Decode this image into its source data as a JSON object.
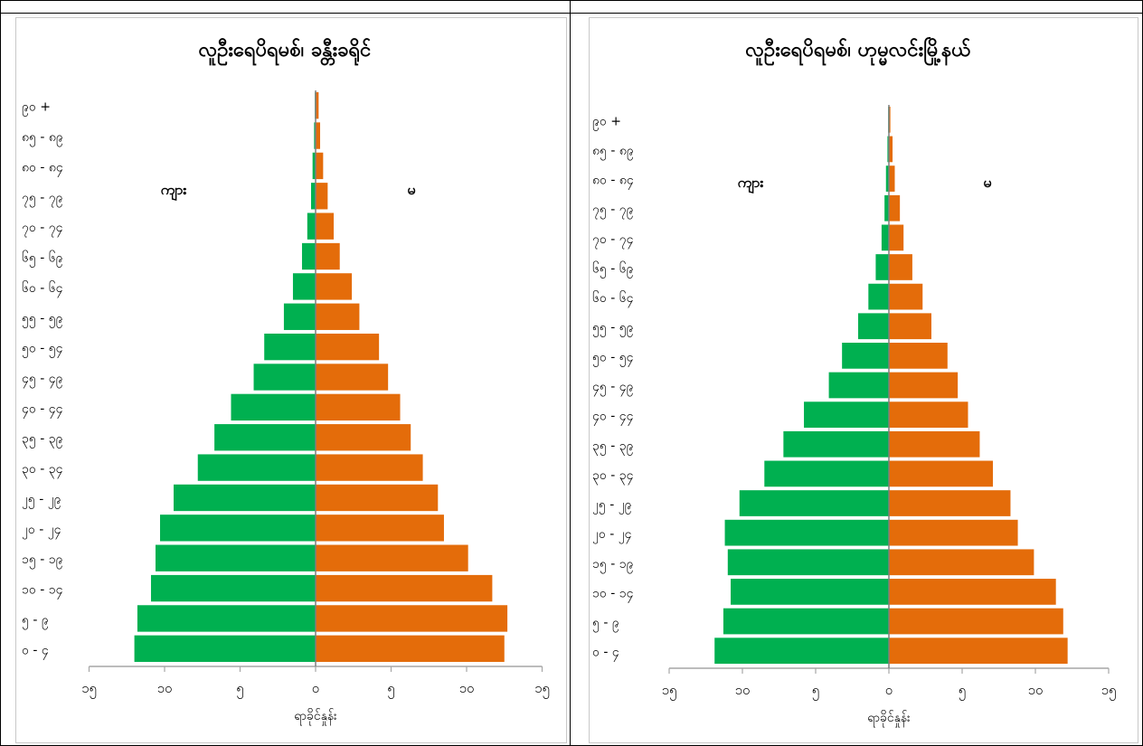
{
  "chart_data": [
    {
      "type": "bar",
      "title": "လူဦးရေပိရမစ်၊ ခန္တီးခရိုင်",
      "xlabel": "ရာခိုင်နှုန်း",
      "ylabel": "",
      "orientation": "horizontal-population-pyramid",
      "categories": [
        "၀ - ၄",
        "၅ - ၉",
        "၁၀ - ၁၄",
        "၁၅ - ၁၉",
        "၂၀ - ၂၄",
        "၂၅ - ၂၉",
        "၃၀ - ၃၄",
        "၃၅ - ၃၉",
        "၄၀ - ၄၄",
        "၄၅ - ၄၉",
        "၅၀ - ၅၄",
        "၅၅ - ၅၉",
        "၆၀ - ၆၄",
        "၆၅ - ၆၉",
        "၇၀ - ၇၄",
        "၇၅ - ၇၉",
        "၈၀ - ၈၄",
        "၈၅ - ၈၉",
        "၉၀ +"
      ],
      "xlim": [
        -15,
        15
      ],
      "xticks": [
        -15,
        -10,
        -5,
        0,
        5,
        10,
        15
      ],
      "xtick_labels": [
        "၁၅",
        "၁၀",
        "၅",
        "၀",
        "၅",
        "၁၀",
        "၁၅"
      ],
      "legend_labels": {
        "male": "ကျား",
        "female": "မ"
      },
      "series": [
        {
          "name": "ကျား",
          "color": "#00b050",
          "values": [
            12.0,
            11.8,
            10.9,
            10.6,
            10.3,
            9.4,
            7.8,
            6.7,
            5.6,
            4.1,
            3.4,
            2.1,
            1.5,
            0.9,
            0.55,
            0.3,
            0.2,
            0.1,
            0.05
          ]
        },
        {
          "name": "မ",
          "color": "#e46c0a",
          "values": [
            12.5,
            12.7,
            11.7,
            10.1,
            8.5,
            8.1,
            7.1,
            6.3,
            5.6,
            4.8,
            4.2,
            2.9,
            2.4,
            1.6,
            1.2,
            0.8,
            0.5,
            0.3,
            0.2
          ]
        }
      ]
    },
    {
      "type": "bar",
      "title": "လူဦးရေပိရမစ်၊ ဟုမ္မလင်းမြို့နယ်",
      "xlabel": "ရာခိုင်နှုန်း",
      "ylabel": "",
      "orientation": "horizontal-population-pyramid",
      "categories": [
        "၀ - ၄",
        "၅ - ၉",
        "၁၀ - ၁၄",
        "၁၅ - ၁၉",
        "၂၀ - ၂၄",
        "၂၅ - ၂၉",
        "၃၀ - ၃၄",
        "၃၅ - ၃၉",
        "၄၀ - ၄၄",
        "၄၅ - ၄၉",
        "၅၀ - ၅၄",
        "၅၅ - ၅၉",
        "၆၀ - ၆၄",
        "၆၅ - ၆၉",
        "၇၀ - ၇၄",
        "၇၅ - ၇၉",
        "၈၀ - ၈၄",
        "၈၅ - ၈၉",
        "၉၀ +"
      ],
      "xlim": [
        -15,
        15
      ],
      "xticks": [
        -15,
        -10,
        -5,
        0,
        5,
        10,
        15
      ],
      "xtick_labels": [
        "၁၅",
        "၁၀",
        "၅",
        "၀",
        "၅",
        "၁၀",
        "၁၅"
      ],
      "legend_labels": {
        "male": "ကျား",
        "female": "မ"
      },
      "series": [
        {
          "name": "ကျား",
          "color": "#00b050",
          "values": [
            11.9,
            11.3,
            10.8,
            11.0,
            11.2,
            10.2,
            8.5,
            7.2,
            5.8,
            4.1,
            3.2,
            2.1,
            1.4,
            0.9,
            0.5,
            0.3,
            0.2,
            0.1,
            0.05
          ]
        },
        {
          "name": "မ",
          "color": "#e46c0a",
          "values": [
            12.2,
            11.9,
            11.4,
            9.9,
            8.8,
            8.3,
            7.1,
            6.2,
            5.4,
            4.7,
            4.0,
            2.9,
            2.3,
            1.6,
            1.0,
            0.75,
            0.4,
            0.25,
            0.1
          ]
        }
      ]
    }
  ]
}
